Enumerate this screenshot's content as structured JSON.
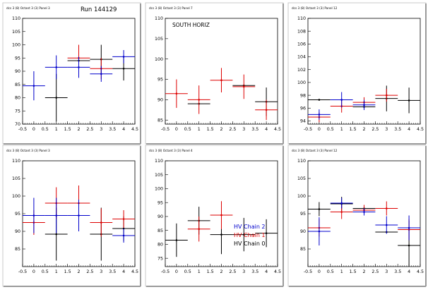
{
  "figure": {
    "run_label": "Run 144129",
    "legend": [
      {
        "label": "HV Chain 2",
        "color": "#0000cc"
      },
      {
        "label": "HV Chain 1",
        "color": "#dd0000"
      },
      {
        "label": "HV Chain 0",
        "color": "#000000"
      }
    ]
  },
  "chart_data": [
    {
      "type": "scatter",
      "title": "dcs 3 (8) Octant 3 (3) Panel 3",
      "subtitle": "Run 144129",
      "xlim": [
        -0.5,
        4.5
      ],
      "ylim": [
        70,
        110
      ],
      "xticks": [
        "-0.5",
        "0",
        "0.5",
        "1",
        "1.5",
        "2",
        "2.5",
        "3",
        "3.5",
        "4",
        "4.5"
      ],
      "yticks": [
        70,
        75,
        80,
        85,
        90,
        95,
        100,
        105,
        110
      ],
      "series": [
        {
          "name": "HV Chain 2",
          "color": "#0000cc",
          "points": [
            {
              "x": 0,
              "y": 84.5,
              "xerr": 0.5,
              "yerr": 5.5
            },
            {
              "x": 1,
              "y": 91.5,
              "xerr": 0.5,
              "yerr": 4.5
            },
            {
              "x": 2,
              "y": 91.5,
              "xerr": 0.5,
              "yerr": 4.0
            },
            {
              "x": 3,
              "y": 89,
              "xerr": 0.5,
              "yerr": 3.0
            },
            {
              "x": 4,
              "y": 95.5,
              "xerr": 0.5,
              "yerr": 2.5
            }
          ]
        },
        {
          "name": "HV Chain 1",
          "color": "#dd0000",
          "points": [
            {
              "x": 2,
              "y": 95,
              "xerr": 0.5,
              "yerr": 5.0
            },
            {
              "x": 3,
              "y": 91,
              "xerr": 0.5,
              "yerr": 4.0
            }
          ]
        },
        {
          "name": "HV Chain 0",
          "color": "#000000",
          "points": [
            {
              "x": 1,
              "y": 80,
              "xerr": 0.5,
              "yerr": 9.0
            },
            {
              "x": 2,
              "y": 94,
              "xerr": 0.5,
              "yerr": 3.0
            },
            {
              "x": 3,
              "y": 94.5,
              "xerr": 0.5,
              "yerr": 5.5
            },
            {
              "x": 4,
              "y": 91,
              "xerr": 0.5,
              "yerr": 4.5
            }
          ]
        }
      ]
    },
    {
      "type": "scatter",
      "title": "dcs 3 (8) Octant 3 (3) Panel 7",
      "subtitle": "SOUTH HORIZ",
      "xlim": [
        -0.5,
        4.5
      ],
      "ylim": [
        84,
        110
      ],
      "xticks": [
        "-0.5",
        "0",
        "0.5",
        "1",
        "1.5",
        "2",
        "2.5",
        "3",
        "3.5",
        "4",
        "4.5"
      ],
      "yticks": [
        85,
        90,
        95,
        100,
        105,
        110
      ],
      "series": [
        {
          "name": "HV Chain 1",
          "color": "#dd0000",
          "points": [
            {
              "x": 0,
              "y": 91.5,
              "xerr": 0.5,
              "yerr": 3.5
            },
            {
              "x": 1,
              "y": 90,
              "xerr": 0.5,
              "yerr": 3.5
            },
            {
              "x": 2,
              "y": 94.8,
              "xerr": 0.5,
              "yerr": 3.0
            },
            {
              "x": 3,
              "y": 93.2,
              "xerr": 0.5,
              "yerr": 3.0
            },
            {
              "x": 4,
              "y": 87.5,
              "xerr": 0.5,
              "yerr": 2.5
            }
          ]
        },
        {
          "name": "HV Chain 0",
          "color": "#000000",
          "points": [
            {
              "x": 1,
              "y": 89,
              "xerr": 0.5,
              "yerr": 0
            },
            {
              "x": 3,
              "y": 93.5,
              "xerr": 0.5,
              "yerr": 0
            },
            {
              "x": 4,
              "y": 89.5,
              "xerr": 0.5,
              "yerr": 3.5
            }
          ]
        }
      ]
    },
    {
      "type": "scatter",
      "title": "dcs 3 (8) Octant 3 (3) Panel 12",
      "subtitle": "",
      "xlim": [
        -0.5,
        4.5
      ],
      "ylim": [
        93.5,
        110
      ],
      "xticks": [
        "-0.5",
        "0",
        "0.5",
        "1",
        "1.5",
        "2",
        "2.5",
        "3",
        "3.5",
        "4",
        "4.5"
      ],
      "yticks": [
        94,
        96,
        98,
        100,
        102,
        104,
        106,
        108,
        110
      ],
      "series": [
        {
          "name": "HV Chain 2",
          "color": "#0000cc",
          "points": [
            {
              "x": 0,
              "y": 95,
              "xerr": 0.5,
              "yerr": 0.8
            },
            {
              "x": 1,
              "y": 97.3,
              "xerr": 0.5,
              "yerr": 1.2
            },
            {
              "x": 2,
              "y": 96.5,
              "xerr": 0.5,
              "yerr": 0.8
            }
          ]
        },
        {
          "name": "HV Chain 1",
          "color": "#dd0000",
          "points": [
            {
              "x": 0,
              "y": 94.6,
              "xerr": 0.5,
              "yerr": 0.8
            },
            {
              "x": 1,
              "y": 96.3,
              "xerr": 0.5,
              "yerr": 1.0
            },
            {
              "x": 2,
              "y": 96.9,
              "xerr": 0.5,
              "yerr": 0.8
            },
            {
              "x": 3,
              "y": 98,
              "xerr": 0.5,
              "yerr": 1.0
            }
          ]
        },
        {
          "name": "HV Chain 0",
          "color": "#000000",
          "points": [
            {
              "x": 0,
              "y": 97.3,
              "xerr": 0.5,
              "yerr": 0
            },
            {
              "x": 2,
              "y": 96.2,
              "xerr": 0.5,
              "yerr": 0
            },
            {
              "x": 3,
              "y": 97.5,
              "xerr": 0.5,
              "yerr": 2.0
            },
            {
              "x": 4,
              "y": 97.2,
              "xerr": 0.5,
              "yerr": 2.0
            }
          ]
        }
      ]
    },
    {
      "type": "scatter",
      "title": "dcs 3 (8) Octant 3 (3) Panel 3",
      "subtitle": "",
      "xlim": [
        -0.5,
        4.5
      ],
      "ylim": [
        80,
        110
      ],
      "xticks": [
        "-0.5",
        "0",
        "0.5",
        "1",
        "1.5",
        "2",
        "2.5",
        "3",
        "3.5",
        "4",
        "4.5"
      ],
      "yticks": [
        85,
        90,
        95,
        100,
        105,
        110
      ],
      "series": [
        {
          "name": "HV Chain 2",
          "color": "#0000cc",
          "points": [
            {
              "x": 0,
              "y": 94.5,
              "xerr": 0.5,
              "yerr": 5.0
            },
            {
              "x": 1,
              "y": 94.5,
              "xerr": 0.5,
              "yerr": 5.0
            },
            {
              "x": 2,
              "y": 94.5,
              "xerr": 0.5,
              "yerr": 4.5
            },
            {
              "x": 4,
              "y": 88.8,
              "xerr": 0.5,
              "yerr": 2.0
            }
          ]
        },
        {
          "name": "HV Chain 1",
          "color": "#dd0000",
          "points": [
            {
              "x": 0,
              "y": 92.5,
              "xerr": 0.5,
              "yerr": 3.5
            },
            {
              "x": 1,
              "y": 98,
              "xerr": 0.5,
              "yerr": 4.5
            },
            {
              "x": 2,
              "y": 98,
              "xerr": 0.5,
              "yerr": 5.0
            },
            {
              "x": 3,
              "y": 92.5,
              "xerr": 0.5,
              "yerr": 4.0
            },
            {
              "x": 4,
              "y": 93.5,
              "xerr": 0.5,
              "yerr": 2.5
            }
          ]
        },
        {
          "name": "HV Chain 0",
          "color": "#000000",
          "points": [
            {
              "x": 1,
              "y": 89.2,
              "xerr": 0.5,
              "yerr": 7.5
            },
            {
              "x": 3,
              "y": 89.2,
              "xerr": 0.5,
              "yerr": 7.5
            },
            {
              "x": 4,
              "y": 90.8,
              "xerr": 0.5,
              "yerr": 3.5
            }
          ]
        }
      ]
    },
    {
      "type": "scatter",
      "title": "dcs 3 (8) Octant 3 (3) Panel 4",
      "subtitle": "",
      "xlim": [
        -0.5,
        4.5
      ],
      "ylim": [
        72,
        110
      ],
      "xticks": [
        "-0.5",
        "0",
        "0.5",
        "1",
        "1.5",
        "2",
        "2.5",
        "3",
        "3.5",
        "4",
        "4.5"
      ],
      "yticks": [
        75,
        80,
        85,
        90,
        95,
        100,
        105,
        110
      ],
      "series": [
        {
          "name": "HV Chain 2",
          "color": "#0000cc",
          "points": []
        },
        {
          "name": "HV Chain 1",
          "color": "#dd0000",
          "points": [
            {
              "x": 1,
              "y": 85.5,
              "xerr": 0.5,
              "yerr": 4.5
            },
            {
              "x": 2,
              "y": 90.5,
              "xerr": 0.5,
              "yerr": 5.0
            }
          ]
        },
        {
          "name": "HV Chain 0",
          "color": "#000000",
          "points": [
            {
              "x": 0,
              "y": 81.5,
              "xerr": 0.5,
              "yerr": 6.0
            },
            {
              "x": 1,
              "y": 88.5,
              "xerr": 0.5,
              "yerr": 5.0
            },
            {
              "x": 2,
              "y": 83.5,
              "xerr": 0.5,
              "yerr": 7.0
            },
            {
              "x": 3,
              "y": 83.5,
              "xerr": 0.5,
              "yerr": 6.0
            },
            {
              "x": 4,
              "y": 84,
              "xerr": 0.5,
              "yerr": 5.0
            }
          ]
        }
      ]
    },
    {
      "type": "scatter",
      "title": "dcs 3 (8) Octant 3 (3) Panel 12",
      "subtitle": "",
      "xlim": [
        -0.5,
        4.5
      ],
      "ylim": [
        80,
        110
      ],
      "xticks": [
        "-0.5",
        "0",
        "0.5",
        "1",
        "1.5",
        "2",
        "2.5",
        "3",
        "3.5",
        "4",
        "4.5"
      ],
      "yticks": [
        85,
        90,
        95,
        100,
        105,
        110
      ],
      "series": [
        {
          "name": "HV Chain 2",
          "color": "#0000cc",
          "points": [
            {
              "x": 0,
              "y": 90,
              "xerr": 0.5,
              "yerr": 4.0
            },
            {
              "x": 1,
              "y": 98,
              "xerr": 0.5,
              "yerr": 1.5
            },
            {
              "x": 2,
              "y": 95.5,
              "xerr": 0.5,
              "yerr": 1.0
            },
            {
              "x": 3,
              "y": 91.8,
              "xerr": 0.5,
              "yerr": 2.5
            },
            {
              "x": 4,
              "y": 91,
              "xerr": 0.5,
              "yerr": 3.5
            }
          ]
        },
        {
          "name": "HV Chain 1",
          "color": "#dd0000",
          "points": [
            {
              "x": 0,
              "y": 91,
              "xerr": 0.5,
              "yerr": 2.5
            },
            {
              "x": 1,
              "y": 95.5,
              "xerr": 0.5,
              "yerr": 2.0
            },
            {
              "x": 2,
              "y": 96,
              "xerr": 0.5,
              "yerr": 1.5
            },
            {
              "x": 3,
              "y": 96.5,
              "xerr": 0.5,
              "yerr": 2.0
            },
            {
              "x": 4,
              "y": 90.5,
              "xerr": 0.5,
              "yerr": 3.0
            }
          ]
        },
        {
          "name": "HV Chain 0",
          "color": "#000000",
          "points": [
            {
              "x": 0,
              "y": 96.3,
              "xerr": 0.5,
              "yerr": 2.0
            },
            {
              "x": 1,
              "y": 97.8,
              "xerr": 0.5,
              "yerr": 2.0
            },
            {
              "x": 2,
              "y": 96.5,
              "xerr": 0.5,
              "yerr": 0
            },
            {
              "x": 3,
              "y": 89.8,
              "xerr": 0.5,
              "yerr": 0
            },
            {
              "x": 4,
              "y": 86,
              "xerr": 0.5,
              "yerr": 7.0
            }
          ]
        }
      ]
    }
  ]
}
